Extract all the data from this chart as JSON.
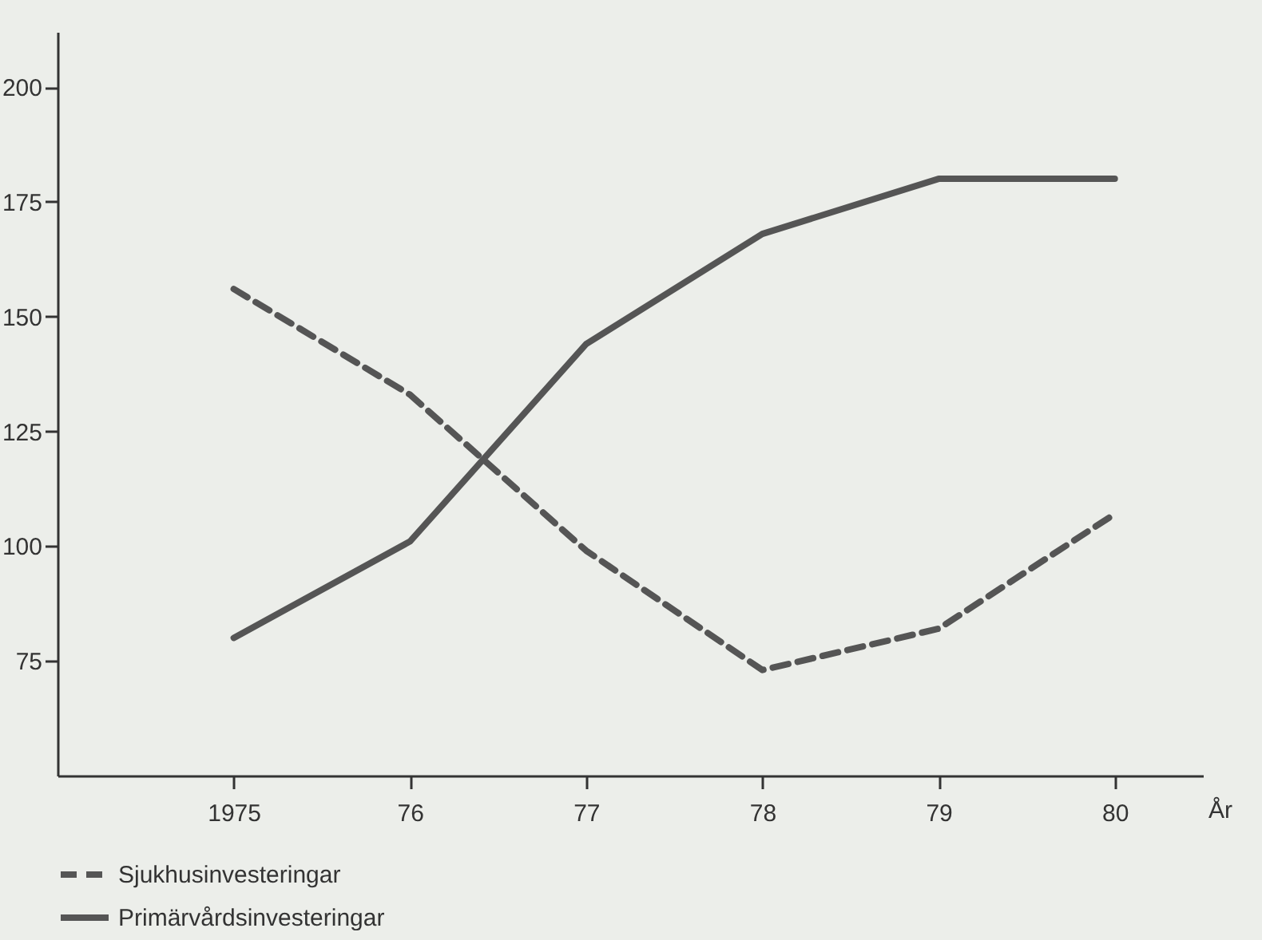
{
  "chart_data": {
    "type": "line",
    "xlabel": "År",
    "x": [
      1975,
      1976,
      1977,
      1978,
      1979,
      1980
    ],
    "series": [
      {
        "name": "Sjukhusinvesteringar",
        "color": "#555555",
        "line_style": "dashed",
        "values": [
          156,
          133,
          99,
          73,
          82,
          107
        ]
      },
      {
        "name": "Primärvårdsinvesteringar",
        "color": "#555555",
        "line_style": "solid",
        "values": [
          80,
          101,
          144,
          168,
          180,
          180
        ]
      }
    ],
    "xlim": [
      1974,
      1980.5
    ],
    "xticks": [
      1975,
      {
        "value": 1976,
        "label": "76"
      },
      {
        "value": 1977,
        "label": "77"
      },
      {
        "value": 1978,
        "label": "78"
      },
      {
        "value": 1979,
        "label": "79"
      },
      {
        "value": 1980,
        "label": "80"
      }
    ],
    "ylim": [
      50,
      212
    ],
    "yticks": [
      75,
      100,
      125,
      150,
      175,
      200
    ],
    "grid": false,
    "legend": "bottom left",
    "marker": "none"
  }
}
